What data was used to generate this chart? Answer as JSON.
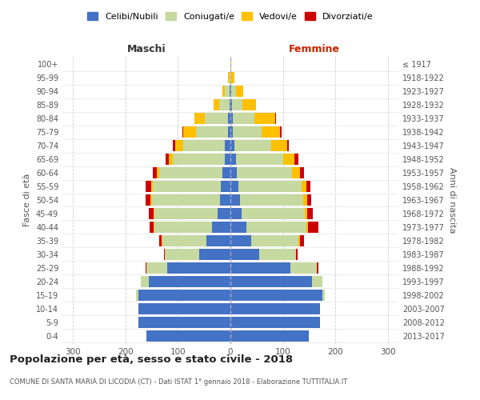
{
  "age_groups": [
    "0-4",
    "5-9",
    "10-14",
    "15-19",
    "20-24",
    "25-29",
    "30-34",
    "35-39",
    "40-44",
    "45-49",
    "50-54",
    "55-59",
    "60-64",
    "65-69",
    "70-74",
    "75-79",
    "80-84",
    "85-89",
    "90-94",
    "95-99",
    "100+"
  ],
  "birth_years": [
    "2013-2017",
    "2008-2012",
    "2003-2007",
    "1998-2002",
    "1993-1997",
    "1988-1992",
    "1983-1987",
    "1978-1982",
    "1973-1977",
    "1968-1972",
    "1963-1967",
    "1958-1962",
    "1953-1957",
    "1948-1952",
    "1943-1947",
    "1938-1942",
    "1933-1937",
    "1928-1932",
    "1923-1927",
    "1918-1922",
    "≤ 1917"
  ],
  "male_celibi": [
    160,
    175,
    175,
    175,
    155,
    120,
    60,
    45,
    35,
    25,
    20,
    18,
    15,
    10,
    10,
    5,
    4,
    2,
    2,
    0,
    0
  ],
  "male_coniugati": [
    0,
    0,
    0,
    5,
    15,
    40,
    65,
    85,
    110,
    120,
    130,
    130,
    120,
    100,
    80,
    60,
    45,
    20,
    8,
    2,
    0
  ],
  "male_vedovi": [
    0,
    0,
    0,
    0,
    0,
    0,
    0,
    1,
    1,
    2,
    2,
    3,
    5,
    8,
    15,
    25,
    20,
    10,
    5,
    2,
    0
  ],
  "male_divorziati": [
    0,
    0,
    0,
    0,
    0,
    2,
    2,
    5,
    8,
    8,
    10,
    10,
    8,
    5,
    4,
    2,
    0,
    0,
    0,
    0,
    0
  ],
  "female_celibi": [
    150,
    170,
    170,
    175,
    155,
    115,
    55,
    40,
    30,
    22,
    18,
    15,
    12,
    10,
    8,
    5,
    5,
    3,
    2,
    0,
    0
  ],
  "female_coniugati": [
    0,
    0,
    0,
    5,
    20,
    50,
    70,
    90,
    115,
    120,
    120,
    120,
    105,
    90,
    70,
    55,
    40,
    20,
    8,
    2,
    0
  ],
  "female_vedovi": [
    0,
    0,
    0,
    0,
    0,
    0,
    0,
    2,
    3,
    5,
    8,
    10,
    15,
    22,
    30,
    35,
    40,
    25,
    15,
    5,
    2
  ],
  "female_divorziati": [
    0,
    0,
    0,
    0,
    0,
    2,
    3,
    8,
    20,
    10,
    8,
    8,
    8,
    8,
    3,
    2,
    2,
    0,
    0,
    0,
    0
  ],
  "colors": {
    "celibi": "#4472c4",
    "coniugati": "#c5d9a0",
    "vedovi": "#ffc000",
    "divorziati": "#cc0000"
  },
  "title": "Popolazione per età, sesso e stato civile - 2018",
  "subtitle": "COMUNE DI SANTA MARIA DI LICODIA (CT) - Dati ISTAT 1° gennaio 2018 - Elaborazione TUTTITALIA.IT",
  "ylabel_left": "Fasce di età",
  "ylabel_right": "Anni di nascita",
  "xlim": 320,
  "background_color": "#ffffff",
  "grid_color": "#cccccc",
  "maschi_label": "Maschi",
  "femmine_label": "Femmine",
  "legend_labels": [
    "Celibi/Nubili",
    "Coniugati/e",
    "Vedovi/e",
    "Divorziati/e"
  ]
}
